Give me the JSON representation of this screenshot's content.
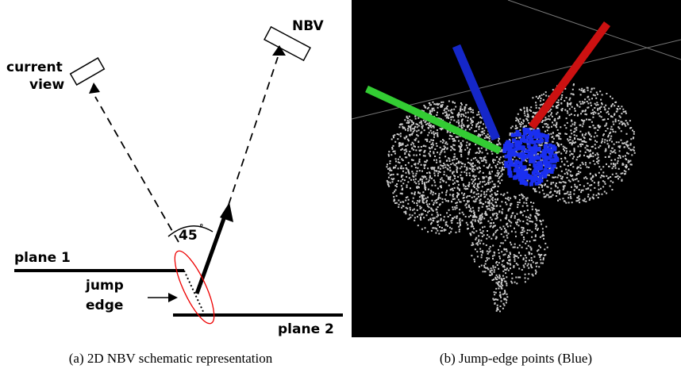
{
  "panel_a": {
    "current_view": [
      "current",
      "view"
    ],
    "nbv": "NBV",
    "angle": "45",
    "degree": "°",
    "plane_1": "plane 1",
    "jump_edge": [
      "jump",
      "edge"
    ],
    "plane_2": "plane 2"
  },
  "captions": {
    "a": "(a)  2D NBV schematic representation",
    "b": "(b)  Jump-edge points (Blue)"
  }
}
